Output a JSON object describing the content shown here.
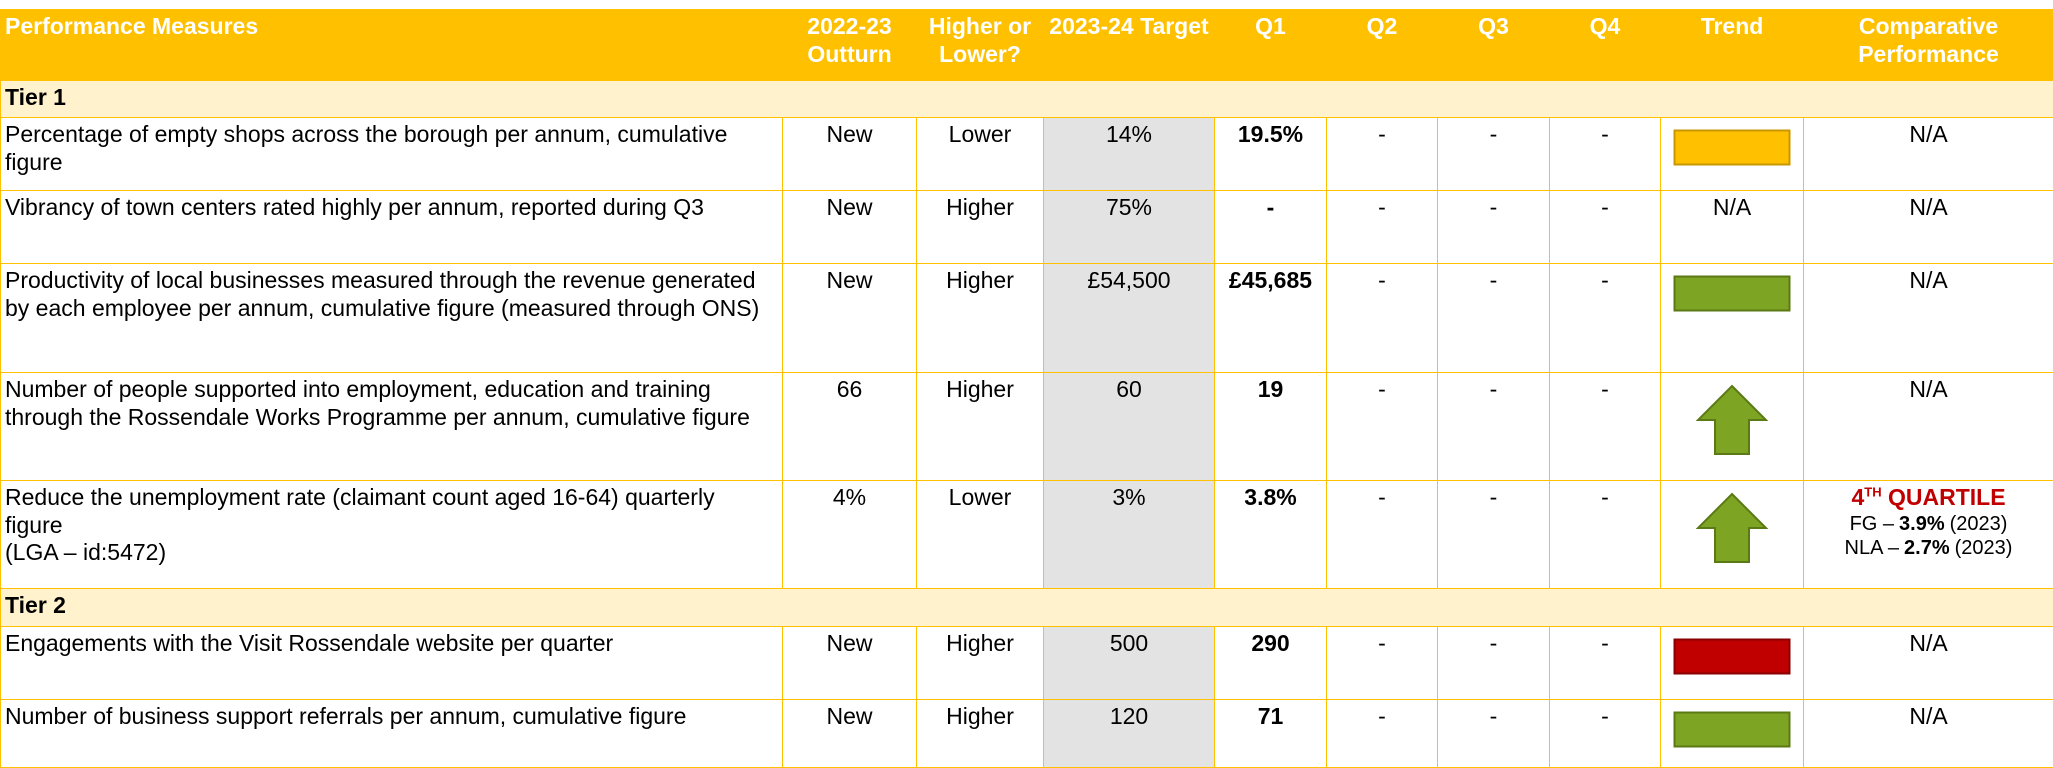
{
  "table": {
    "header": [
      "Performance Measures",
      "2022-23 Outturn",
      "Higher or Lower?",
      "2023-24 Target",
      "Q1",
      "Q2",
      "Q3",
      "Q4",
      "Trend",
      "Comparative Performance"
    ],
    "sections": [
      {
        "tier": "Tier 1",
        "rows": [
          {
            "measure": "Percentage of empty shops across the borough per annum, cumulative figure",
            "outturn": "New",
            "direction": "Lower",
            "target": "14%",
            "q1": "19.5%",
            "q2": "-",
            "q3": "-",
            "q4": "-",
            "comparative": "N/A"
          },
          {
            "measure": "Vibrancy of town centers rated highly per annum, reported during Q3",
            "outturn": "New",
            "direction": "Higher",
            "target": "75%",
            "q1": "-",
            "q2": "-",
            "q3": "-",
            "q4": "-",
            "trend": "N/A",
            "comparative": "N/A"
          },
          {
            "measure": "Productivity of local businesses measured through the revenue generated by each employee per annum, cumulative figure (measured through ONS)",
            "outturn": "New",
            "direction": "Higher",
            "target": "£54,500",
            "q1": "£45,685",
            "q2": "-",
            "q3": "-",
            "q4": "-",
            "comparative": "N/A"
          },
          {
            "measure": "Number of people supported into employment, education and training through the Rossendale Works Programme per annum, cumulative figure",
            "outturn": "66",
            "direction": "Higher",
            "target": "60",
            "q1": "19",
            "q2": "-",
            "q3": "-",
            "q4": "-",
            "comparative": "N/A"
          },
          {
            "measure": "Reduce the unemployment rate (claimant count aged 16-64) quarterly figure",
            "measure_note": "(LGA – id:5472)",
            "outturn": "4%",
            "direction": "Lower",
            "target": "3%",
            "q1": "3.8%",
            "q2": "-",
            "q3": "-",
            "q4": "-",
            "comparative": {
              "quartile_number": "4",
              "quartile_suffix": "TH",
              "quartile_word": "QUARTILE",
              "lines": [
                {
                  "label": "FG –",
                  "value": "3.9%",
                  "year": "(2023)"
                },
                {
                  "label": "NLA –",
                  "value": "2.7%",
                  "year": "(2023)"
                }
              ]
            }
          }
        ]
      },
      {
        "tier": "Tier 2",
        "rows": [
          {
            "measure": "Engagements with the Visit Rossendale website per quarter",
            "outturn": "New",
            "direction": "Higher",
            "target": "500",
            "q1": "290",
            "q2": "-",
            "q3": "-",
            "q4": "-",
            "comparative": "N/A"
          },
          {
            "measure": "Number of business support referrals per annum, cumulative figure",
            "outturn": "New",
            "direction": "Higher",
            "target": "120",
            "q1": "71",
            "q2": "-",
            "q3": "-",
            "q4": "-",
            "comparative": "N/A"
          }
        ]
      }
    ]
  }
}
